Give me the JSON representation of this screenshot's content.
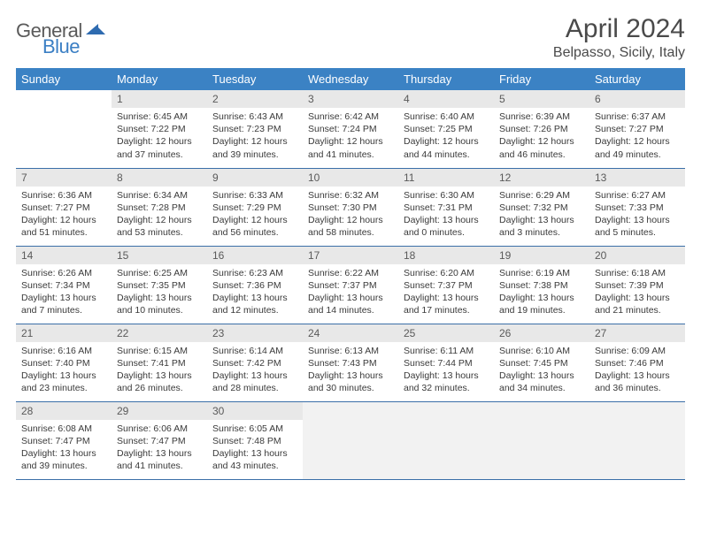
{
  "logo": {
    "text_gray": "General",
    "text_blue": "Blue",
    "icon_color": "#2e6bb0"
  },
  "header": {
    "month_title": "April 2024",
    "location": "Belpasso, Sicily, Italy"
  },
  "colors": {
    "header_bg": "#3b82c4",
    "header_text": "#ffffff",
    "daynum_bg": "#e8e8e8",
    "daynum_text": "#5a5a5a",
    "body_text": "#3a3a3a",
    "rule": "#3b6fa8",
    "trailing_bg": "#f2f2f2"
  },
  "weekdays": [
    "Sunday",
    "Monday",
    "Tuesday",
    "Wednesday",
    "Thursday",
    "Friday",
    "Saturday"
  ],
  "start_offset": 1,
  "days": [
    {
      "n": "1",
      "sunrise": "6:45 AM",
      "sunset": "7:22 PM",
      "daylight": "12 hours and 37 minutes."
    },
    {
      "n": "2",
      "sunrise": "6:43 AM",
      "sunset": "7:23 PM",
      "daylight": "12 hours and 39 minutes."
    },
    {
      "n": "3",
      "sunrise": "6:42 AM",
      "sunset": "7:24 PM",
      "daylight": "12 hours and 41 minutes."
    },
    {
      "n": "4",
      "sunrise": "6:40 AM",
      "sunset": "7:25 PM",
      "daylight": "12 hours and 44 minutes."
    },
    {
      "n": "5",
      "sunrise": "6:39 AM",
      "sunset": "7:26 PM",
      "daylight": "12 hours and 46 minutes."
    },
    {
      "n": "6",
      "sunrise": "6:37 AM",
      "sunset": "7:27 PM",
      "daylight": "12 hours and 49 minutes."
    },
    {
      "n": "7",
      "sunrise": "6:36 AM",
      "sunset": "7:27 PM",
      "daylight": "12 hours and 51 minutes."
    },
    {
      "n": "8",
      "sunrise": "6:34 AM",
      "sunset": "7:28 PM",
      "daylight": "12 hours and 53 minutes."
    },
    {
      "n": "9",
      "sunrise": "6:33 AM",
      "sunset": "7:29 PM",
      "daylight": "12 hours and 56 minutes."
    },
    {
      "n": "10",
      "sunrise": "6:32 AM",
      "sunset": "7:30 PM",
      "daylight": "12 hours and 58 minutes."
    },
    {
      "n": "11",
      "sunrise": "6:30 AM",
      "sunset": "7:31 PM",
      "daylight": "13 hours and 0 minutes."
    },
    {
      "n": "12",
      "sunrise": "6:29 AM",
      "sunset": "7:32 PM",
      "daylight": "13 hours and 3 minutes."
    },
    {
      "n": "13",
      "sunrise": "6:27 AM",
      "sunset": "7:33 PM",
      "daylight": "13 hours and 5 minutes."
    },
    {
      "n": "14",
      "sunrise": "6:26 AM",
      "sunset": "7:34 PM",
      "daylight": "13 hours and 7 minutes."
    },
    {
      "n": "15",
      "sunrise": "6:25 AM",
      "sunset": "7:35 PM",
      "daylight": "13 hours and 10 minutes."
    },
    {
      "n": "16",
      "sunrise": "6:23 AM",
      "sunset": "7:36 PM",
      "daylight": "13 hours and 12 minutes."
    },
    {
      "n": "17",
      "sunrise": "6:22 AM",
      "sunset": "7:37 PM",
      "daylight": "13 hours and 14 minutes."
    },
    {
      "n": "18",
      "sunrise": "6:20 AM",
      "sunset": "7:37 PM",
      "daylight": "13 hours and 17 minutes."
    },
    {
      "n": "19",
      "sunrise": "6:19 AM",
      "sunset": "7:38 PM",
      "daylight": "13 hours and 19 minutes."
    },
    {
      "n": "20",
      "sunrise": "6:18 AM",
      "sunset": "7:39 PM",
      "daylight": "13 hours and 21 minutes."
    },
    {
      "n": "21",
      "sunrise": "6:16 AM",
      "sunset": "7:40 PM",
      "daylight": "13 hours and 23 minutes."
    },
    {
      "n": "22",
      "sunrise": "6:15 AM",
      "sunset": "7:41 PM",
      "daylight": "13 hours and 26 minutes."
    },
    {
      "n": "23",
      "sunrise": "6:14 AM",
      "sunset": "7:42 PM",
      "daylight": "13 hours and 28 minutes."
    },
    {
      "n": "24",
      "sunrise": "6:13 AM",
      "sunset": "7:43 PM",
      "daylight": "13 hours and 30 minutes."
    },
    {
      "n": "25",
      "sunrise": "6:11 AM",
      "sunset": "7:44 PM",
      "daylight": "13 hours and 32 minutes."
    },
    {
      "n": "26",
      "sunrise": "6:10 AM",
      "sunset": "7:45 PM",
      "daylight": "13 hours and 34 minutes."
    },
    {
      "n": "27",
      "sunrise": "6:09 AM",
      "sunset": "7:46 PM",
      "daylight": "13 hours and 36 minutes."
    },
    {
      "n": "28",
      "sunrise": "6:08 AM",
      "sunset": "7:47 PM",
      "daylight": "13 hours and 39 minutes."
    },
    {
      "n": "29",
      "sunrise": "6:06 AM",
      "sunset": "7:47 PM",
      "daylight": "13 hours and 41 minutes."
    },
    {
      "n": "30",
      "sunrise": "6:05 AM",
      "sunset": "7:48 PM",
      "daylight": "13 hours and 43 minutes."
    }
  ],
  "labels": {
    "sunrise": "Sunrise:",
    "sunset": "Sunset:",
    "daylight": "Daylight:"
  }
}
